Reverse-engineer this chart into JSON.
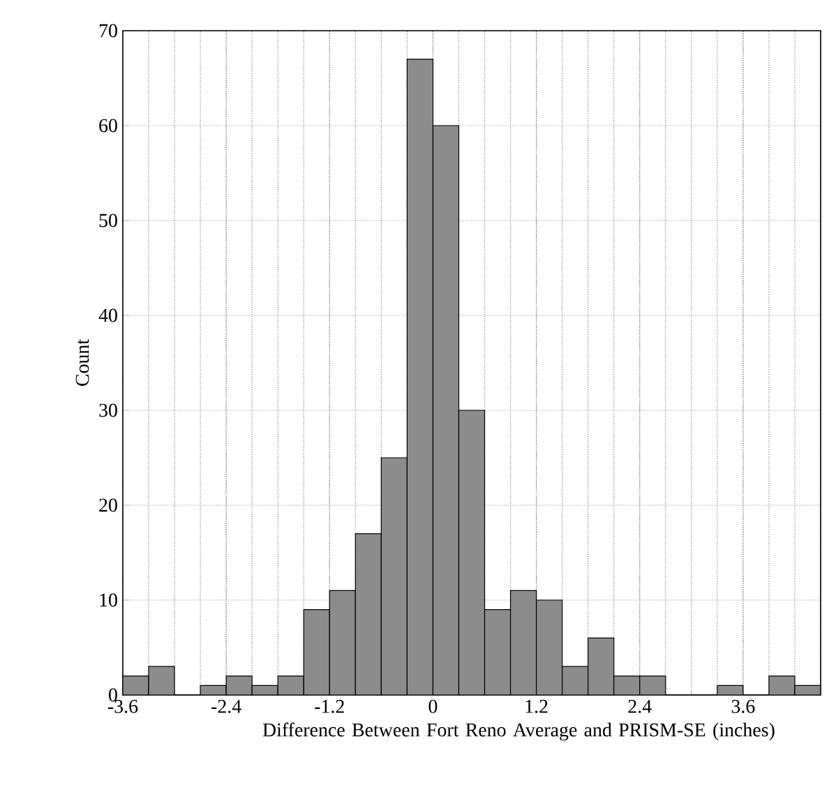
{
  "chart_data": {
    "type": "histogram",
    "xlabel": "Difference Between Fort Reno Average and PRISM-SE (inches)",
    "ylabel": "Count",
    "bins": [
      -3.6,
      -3.3,
      -3.0,
      -2.7,
      -2.4,
      -2.1,
      -1.8,
      -1.5,
      -1.2,
      -0.9,
      -0.6,
      -0.3,
      0,
      0.3,
      0.6,
      0.9,
      1.2,
      1.5,
      1.8,
      2.1,
      2.4,
      2.7,
      3.0,
      3.3,
      3.6,
      3.9,
      4.2,
      4.5
    ],
    "values": [
      2,
      3,
      0,
      1,
      2,
      1,
      2,
      9,
      11,
      17,
      25,
      67,
      60,
      30,
      9,
      11,
      10,
      3,
      6,
      2,
      2,
      0,
      0,
      1,
      0,
      2,
      1
    ],
    "color": "#8c8c8c",
    "xlim": [
      -3.6,
      4.5
    ],
    "ylim": [
      0,
      70
    ],
    "xticks": [
      -3.6,
      -2.4,
      -1.2,
      0,
      1.2,
      2.4,
      3.6
    ],
    "yticks": [
      0,
      10,
      20,
      30,
      40,
      50,
      60,
      70
    ],
    "grid": true
  }
}
